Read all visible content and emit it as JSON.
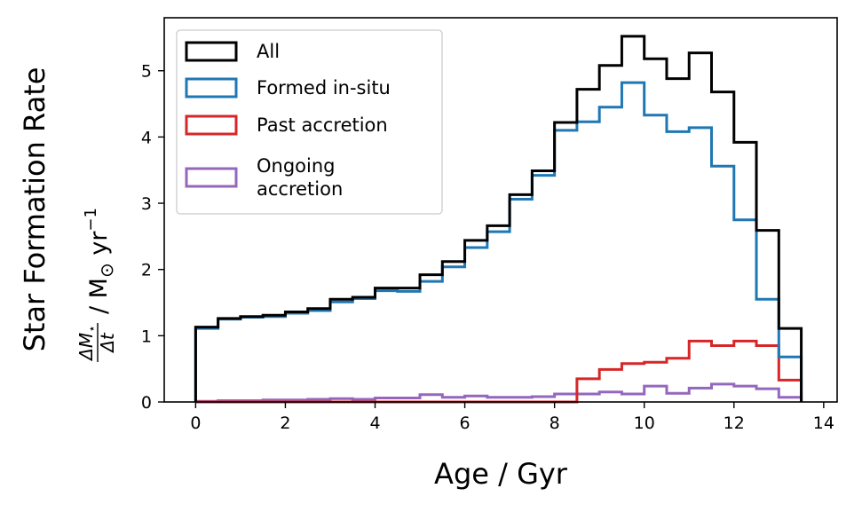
{
  "chart_data": {
    "type": "histogram-step",
    "xlabel": "Age / Gyr",
    "ylabel": "Star Formation Rate",
    "ylabel_units": {
      "numerator": "ΔM",
      "numerator_sub": "⋆",
      "denominator": "Δt",
      "units": "/ M",
      "sun": "⊙",
      "yr": " yr",
      "exp": "−1"
    },
    "xlim": [
      -0.7,
      14.3
    ],
    "ylim": [
      0,
      5.8
    ],
    "xticks": [
      0,
      2,
      4,
      6,
      8,
      10,
      12,
      14
    ],
    "yticks": [
      0,
      1,
      2,
      3,
      4,
      5
    ],
    "bin_width": 0.5,
    "bin_start": 0,
    "legend_position": "upper left",
    "series": [
      {
        "name": "All",
        "color": "#000000",
        "values": [
          1.13,
          1.26,
          1.29,
          1.31,
          1.36,
          1.41,
          1.55,
          1.58,
          1.72,
          1.72,
          1.92,
          2.12,
          2.44,
          2.66,
          3.13,
          3.49,
          4.22,
          4.72,
          5.08,
          5.52,
          5.18,
          4.88,
          5.27,
          4.68,
          3.92,
          2.59,
          1.11
        ]
      },
      {
        "name": "Formed in-situ",
        "color": "#1f77b4",
        "values": [
          1.11,
          1.25,
          1.28,
          1.29,
          1.34,
          1.38,
          1.51,
          1.56,
          1.68,
          1.67,
          1.82,
          2.04,
          2.33,
          2.57,
          3.06,
          3.42,
          4.1,
          4.23,
          4.45,
          4.82,
          4.33,
          4.08,
          4.14,
          3.56,
          2.75,
          1.55,
          0.68
        ]
      },
      {
        "name": "Past accretion",
        "color": "#d62728",
        "values": [
          0.0,
          0.0,
          0.0,
          0.0,
          0.0,
          0.0,
          0.0,
          0.0,
          0.0,
          0.0,
          0.0,
          0.0,
          0.0,
          0.0,
          0.0,
          0.0,
          0.0,
          0.35,
          0.49,
          0.58,
          0.6,
          0.66,
          0.92,
          0.85,
          0.92,
          0.85,
          0.33
        ]
      },
      {
        "name": "Ongoing\naccretion",
        "color": "#9467bd",
        "values": [
          0.01,
          0.02,
          0.02,
          0.03,
          0.03,
          0.04,
          0.05,
          0.04,
          0.06,
          0.06,
          0.11,
          0.07,
          0.09,
          0.07,
          0.07,
          0.08,
          0.12,
          0.12,
          0.15,
          0.12,
          0.24,
          0.13,
          0.21,
          0.27,
          0.24,
          0.2,
          0.07
        ]
      }
    ]
  }
}
